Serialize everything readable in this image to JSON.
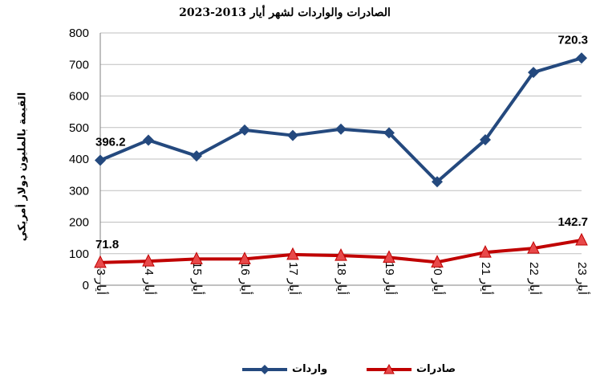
{
  "chart_data": {
    "type": "line",
    "title": "الصادرات والواردات لشهر أيار 2013-2023",
    "ylabel": "القيمة بالمليون دولار أمريكي",
    "xlabel": "",
    "ylim": [
      0,
      800
    ],
    "yticks": [
      0,
      100,
      200,
      300,
      400,
      500,
      600,
      700,
      800
    ],
    "categories": [
      "أيار 13",
      "أيار 14",
      "أيار 15",
      "أيار 16",
      "أيار 17",
      "أيار 18",
      "أيار 19",
      "أيار 20",
      "أيار 21",
      "أيار 22",
      "أيار 23"
    ],
    "grid": true,
    "legend_position": "bottom",
    "series": [
      {
        "name": "واردات",
        "color": "#24497e",
        "marker": "diamond",
        "values": [
          396.2,
          460,
          410,
          492,
          475,
          495,
          483,
          328,
          461,
          675,
          720.3
        ],
        "labels": {
          "0": "396.2",
          "10": "720.3"
        }
      },
      {
        "name": "صادرات",
        "color": "#c00000",
        "marker": "triangle",
        "values": [
          71.8,
          76,
          83,
          83,
          97,
          94,
          88,
          73,
          104,
          117,
          142.7
        ],
        "labels": {
          "0": "71.8",
          "10": "142.7"
        }
      }
    ]
  }
}
